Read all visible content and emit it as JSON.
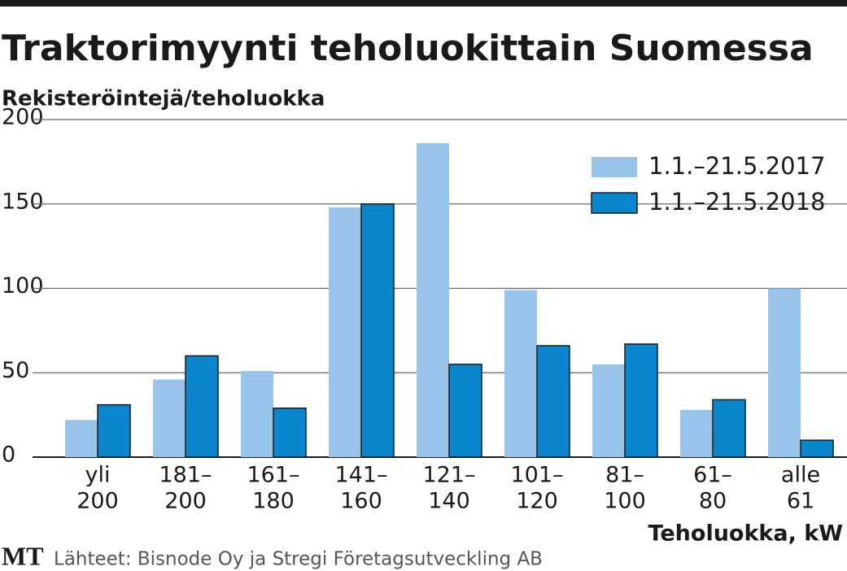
{
  "chart_data": {
    "type": "bar",
    "title": "Traktorimyynti teholuokittain Suomessa",
    "subtitle": "Rekisteröintejä/teholuokka",
    "x_label": "Teholuokka, kW",
    "source": "Lähteet: Bisnode Oy ja Stregi Företagsutveckling AB",
    "logo": "MT",
    "categories": [
      [
        "yli",
        "200"
      ],
      [
        "181–",
        "200"
      ],
      [
        "161–",
        "180"
      ],
      [
        "141–",
        "160"
      ],
      [
        "121–",
        "140"
      ],
      [
        "101–",
        "120"
      ],
      [
        "81–",
        "100"
      ],
      [
        "61–",
        "80"
      ],
      [
        "alle",
        "61"
      ]
    ],
    "series": [
      {
        "name": "1.1.–21.5.2017",
        "color": "#97c4e8",
        "values": [
          22,
          46,
          51,
          148,
          186,
          99,
          55,
          28,
          100
        ]
      },
      {
        "name": "1.1.–21.5.2018",
        "color": "#0a86cf",
        "values": [
          31,
          60,
          29,
          150,
          55,
          66,
          67,
          34,
          10
        ]
      }
    ],
    "ylim": [
      0,
      200
    ],
    "yticks": [
      0,
      50,
      100,
      150,
      200
    ],
    "grid": true,
    "legend": "top-right"
  }
}
